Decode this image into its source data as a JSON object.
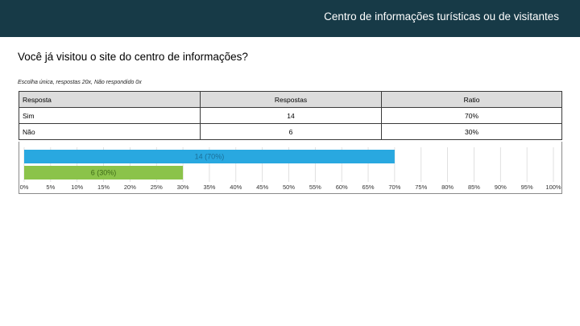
{
  "header": {
    "title": "Centro de informações turísticas ou de visitantes"
  },
  "question": "Você já visitou o site do centro de informações?",
  "meta": "Escolha única, respostas 20x, Não respondido 0x",
  "table": {
    "headers": [
      "Resposta",
      "Respostas",
      "Ratio"
    ],
    "rows": [
      {
        "answer": "Sim",
        "count": "14",
        "ratio": "70%"
      },
      {
        "answer": "Não",
        "count": "6",
        "ratio": "30%"
      }
    ]
  },
  "chart_data": {
    "type": "bar",
    "orientation": "horizontal",
    "categories": [
      "Sim",
      "Não"
    ],
    "values": [
      70,
      30
    ],
    "data_labels": [
      "14 (70%)",
      "6 (30%)"
    ],
    "colors": [
      "#29a8e0",
      "#8bc34a"
    ],
    "xlim": [
      0,
      100
    ],
    "xticks": [
      "0%",
      "5%",
      "10%",
      "15%",
      "20%",
      "25%",
      "30%",
      "35%",
      "40%",
      "45%",
      "50%",
      "55%",
      "60%",
      "65%",
      "70%",
      "75%",
      "80%",
      "85%",
      "90%",
      "95%",
      "100%"
    ],
    "grid": true
  }
}
